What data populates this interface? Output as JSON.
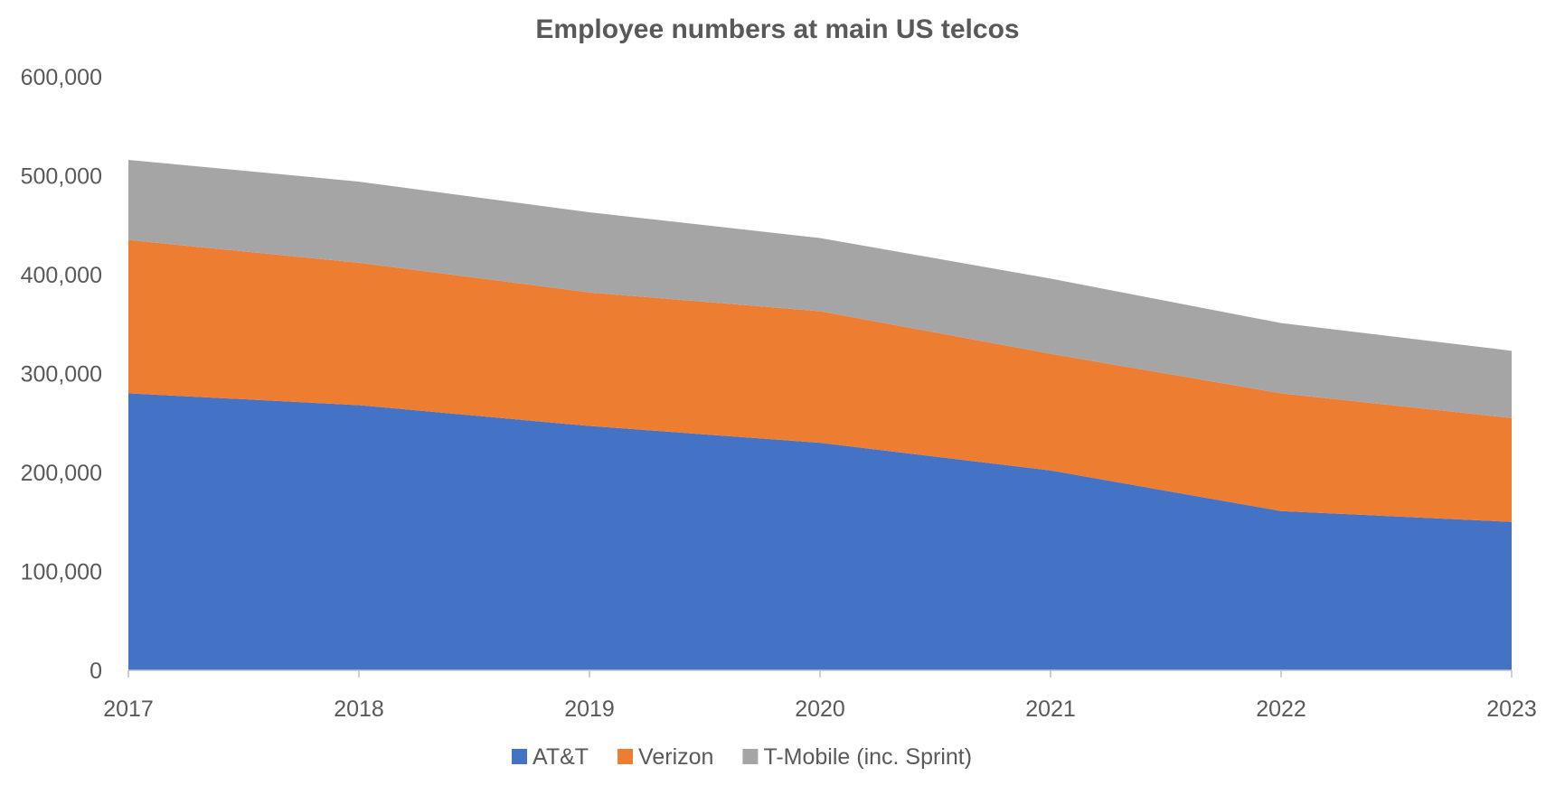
{
  "chart_data": {
    "type": "area",
    "stacked": true,
    "title": "Employee numbers at main US telcos",
    "xlabel": "",
    "ylabel": "",
    "categories": [
      "2017",
      "2018",
      "2019",
      "2020",
      "2021",
      "2022",
      "2023"
    ],
    "ylim": [
      0,
      600000
    ],
    "yticks": [
      0,
      100000,
      200000,
      300000,
      400000,
      500000,
      600000
    ],
    "ytick_labels": [
      "0",
      "100,000",
      "200,000",
      "300,000",
      "400,000",
      "500,000",
      "600,000"
    ],
    "grid": false,
    "legend_position": "bottom",
    "series": [
      {
        "name": "AT&T",
        "color": "#4472C4",
        "values": [
          280000,
          268000,
          247000,
          230000,
          202000,
          161000,
          150000
        ]
      },
      {
        "name": "Verizon",
        "color": "#ED7D31",
        "values": [
          155000,
          144000,
          135000,
          133000,
          118000,
          119000,
          105000
        ]
      },
      {
        "name": "T-Mobile (inc. Sprint)",
        "color": "#A5A5A5",
        "values": [
          81000,
          82000,
          81000,
          74000,
          76000,
          71000,
          68000
        ]
      }
    ]
  }
}
